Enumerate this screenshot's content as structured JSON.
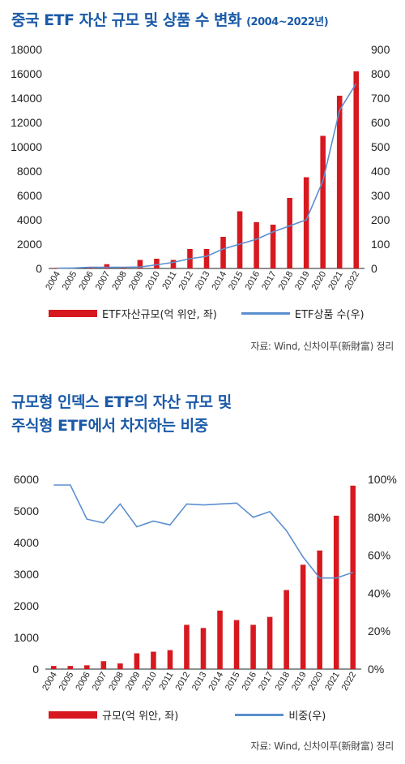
{
  "colors": {
    "bar": "#d7191f",
    "line": "#5b8fd0",
    "title": "#1b5aa8"
  },
  "header1": {
    "title": "중국 ETF 자산 규모 및 상품 수 변화",
    "sub": "(2004~2022년)"
  },
  "header2": {
    "line1": "규모형 인덱스 ETF의 자산 규모 및",
    "line2": "주식형 ETF에서 차지하는 비중"
  },
  "source1": "자료: Wind, 신차이푸(新財富) 정리",
  "source2": "자료: Wind, 신차이푸(新財富) 정리",
  "legend1": {
    "bar": "ETF자산규모(억 위안, 좌)",
    "line": "ETF상품 수(우)"
  },
  "legend2": {
    "bar": "규모(억 위안, 좌)",
    "line": "비중(우)"
  },
  "chart_data": [
    {
      "type": "bar",
      "categories": [
        "2004",
        "2005",
        "2006",
        "2007",
        "2008",
        "2009",
        "2010",
        "2011",
        "2012",
        "2013",
        "2014",
        "2015",
        "2016",
        "2017",
        "2018",
        "2019",
        "2020",
        "2021",
        "2022"
      ],
      "series": [
        {
          "name": "ETF자산규모(억 위안, 좌)",
          "axis": "left",
          "kind": "bar",
          "values": [
            50,
            30,
            90,
            350,
            100,
            700,
            800,
            700,
            1600,
            1600,
            2600,
            4700,
            3800,
            3600,
            5800,
            7500,
            10900,
            14200,
            16200
          ]
        },
        {
          "name": "ETF상품 수(우)",
          "axis": "right",
          "kind": "line",
          "values": [
            1,
            2,
            5,
            5,
            5,
            6,
            15,
            25,
            40,
            50,
            80,
            100,
            120,
            150,
            175,
            200,
            360,
            650,
            760
          ]
        }
      ],
      "yleft": {
        "ylim": [
          0,
          18000
        ],
        "ticks": [
          0,
          2000,
          4000,
          6000,
          8000,
          10000,
          12000,
          14000,
          16000,
          18000
        ]
      },
      "yright": {
        "ylim": [
          0,
          900
        ],
        "ticks": [
          0,
          100,
          200,
          300,
          400,
          500,
          600,
          700,
          800,
          900
        ]
      },
      "legend": "bottom"
    },
    {
      "type": "bar",
      "categories": [
        "2004",
        "2005",
        "2006",
        "2007",
        "2008",
        "2009",
        "2010",
        "2011",
        "2012",
        "2013",
        "2014",
        "2015",
        "2016",
        "2017",
        "2018",
        "2019",
        "2020",
        "2021",
        "2022"
      ],
      "series": [
        {
          "name": "규모(억 위안, 좌)",
          "axis": "left",
          "kind": "bar",
          "values": [
            100,
            100,
            120,
            250,
            180,
            500,
            550,
            600,
            1400,
            1300,
            1850,
            1550,
            1400,
            1650,
            2500,
            3300,
            3750,
            4850,
            5800
          ]
        },
        {
          "name": "비중(우)",
          "axis": "right",
          "kind": "line",
          "values": [
            97,
            97,
            79,
            77,
            87,
            75,
            78,
            76,
            87,
            86.5,
            87,
            87.5,
            80,
            83,
            73,
            59,
            48,
            48,
            51
          ]
        }
      ],
      "yleft": {
        "ylim": [
          0,
          6000
        ],
        "ticks": [
          0,
          1000,
          2000,
          3000,
          4000,
          5000,
          6000
        ]
      },
      "yright": {
        "ylim": [
          0,
          100
        ],
        "ticks": [
          "0%",
          "20%",
          "40%",
          "60%",
          "80%",
          "100%"
        ],
        "tickvals": [
          0,
          20,
          40,
          60,
          80,
          100
        ]
      },
      "legend": "bottom"
    }
  ]
}
